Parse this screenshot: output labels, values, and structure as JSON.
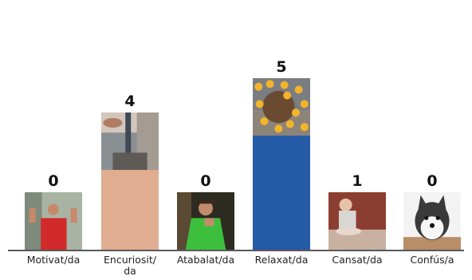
{
  "chart_data": {
    "type": "bar",
    "categories": [
      "Motivat/da",
      "Encuriosit/\nda",
      "Atabalat/da",
      "Relaxat/da",
      "Cansat/da",
      "Confús/a"
    ],
    "values": [
      0,
      4,
      0,
      5,
      1,
      0
    ],
    "bar_colors": [
      "#e9a792",
      "#e0ad91",
      "#c9cfd6",
      "#245aa6",
      "#a8d9e3",
      "#d9d9d9"
    ],
    "photo_subjects": [
      "man-flexing-photo",
      "sleeping-person-photo",
      "man-eating-photo",
      "capybara-in-bath-photo",
      "baby-on-couch-photo",
      "husky-dog-photo"
    ],
    "ylim": [
      0,
      5
    ],
    "data_labels": [
      "0",
      "4",
      "0",
      "5",
      "1",
      "0"
    ]
  }
}
